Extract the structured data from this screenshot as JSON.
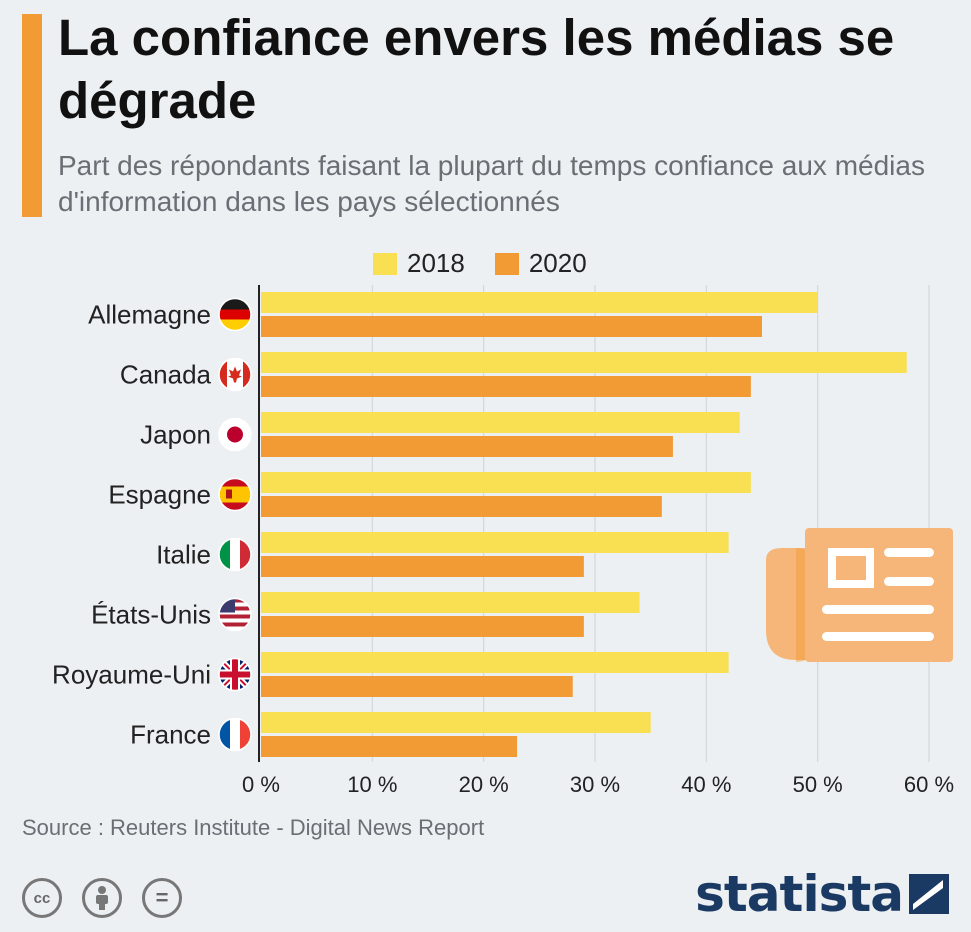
{
  "header": {
    "title": "La confiance envers les médias se dégrade",
    "subtitle": "Part des répondants faisant la plupart du temps confiance aux médias d'information dans les pays sélectionnés"
  },
  "legend": [
    {
      "label": "2018",
      "color": "#f8e052"
    },
    {
      "label": "2020",
      "color": "#f29a33"
    }
  ],
  "chart_data": {
    "type": "bar",
    "orientation": "horizontal",
    "categories": [
      "Allemagne",
      "Canada",
      "Japon",
      "Espagne",
      "Italie",
      "États-Unis",
      "Royaume-Uni",
      "France"
    ],
    "category_icons": [
      "germany-flag-icon",
      "canada-flag-icon",
      "japan-flag-icon",
      "spain-flag-icon",
      "italy-flag-icon",
      "usa-flag-icon",
      "uk-flag-icon",
      "france-flag-icon"
    ],
    "series": [
      {
        "name": "2018",
        "values": [
          50,
          58,
          43,
          44,
          42,
          34,
          42,
          35
        ]
      },
      {
        "name": "2020",
        "values": [
          45,
          44,
          37,
          36,
          29,
          29,
          28,
          23
        ]
      }
    ],
    "xlim": [
      0,
      60
    ],
    "xticks": [
      0,
      10,
      20,
      30,
      40,
      50,
      60
    ],
    "xtick_labels": [
      "0 %",
      "10 %",
      "20 %",
      "30 %",
      "40 %",
      "50 %",
      "60 %"
    ],
    "grid": true,
    "legend_position": "top-center"
  },
  "footer": {
    "source": "Source : Reuters Institute - Digital News Report",
    "license_icons": [
      "cc-icon",
      "attribution-icon",
      "no-derivatives-icon"
    ],
    "license_labels": [
      "cc",
      "="
    ],
    "brand": "statista",
    "brand_icon": "statista-logo-icon"
  },
  "decoration": {
    "icon": "newspaper-icon",
    "color": "#f6b679"
  }
}
